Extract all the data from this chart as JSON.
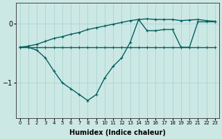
{
  "xlabel": "Humidex (Indice chaleur)",
  "bg_color": "#cce8e4",
  "grid_color": "#aad4d0",
  "line_color": "#005f5f",
  "xlim": [
    -0.5,
    23.5
  ],
  "ylim": [
    -1.6,
    0.35
  ],
  "yticks": [
    0,
    -1
  ],
  "xticks": [
    0,
    1,
    2,
    3,
    4,
    5,
    6,
    7,
    8,
    9,
    10,
    11,
    12,
    13,
    14,
    15,
    16,
    17,
    18,
    19,
    20,
    21,
    22,
    23
  ],
  "line1_x": [
    0,
    1,
    2,
    3,
    4,
    5,
    6,
    7,
    8,
    9,
    10,
    11,
    12,
    13,
    14,
    15,
    16,
    17,
    18,
    19,
    20,
    21,
    22,
    23
  ],
  "line1_y": [
    -0.4,
    -0.4,
    -0.4,
    -0.4,
    -0.4,
    -0.4,
    -0.4,
    -0.4,
    -0.4,
    -0.4,
    -0.4,
    -0.4,
    -0.4,
    -0.4,
    -0.4,
    -0.4,
    -0.4,
    -0.4,
    -0.4,
    -0.4,
    -0.4,
    -0.4,
    -0.4,
    -0.4
  ],
  "line2_x": [
    0,
    1,
    2,
    3,
    4,
    5,
    6,
    7,
    8,
    9,
    10,
    11,
    12,
    13,
    14,
    15,
    16,
    17,
    18,
    19,
    20,
    21,
    22,
    23
  ],
  "line2_y": [
    -0.4,
    -0.4,
    -0.45,
    -0.58,
    -0.8,
    -1.0,
    -1.1,
    -1.2,
    -1.3,
    -1.2,
    -0.92,
    -0.72,
    -0.58,
    -0.32,
    0.07,
    -0.12,
    -0.12,
    -0.1,
    -0.1,
    -0.4,
    -0.4,
    0.03,
    0.03,
    0.03
  ],
  "line3_x": [
    0,
    1,
    2,
    3,
    4,
    5,
    6,
    7,
    8,
    9,
    10,
    11,
    12,
    13,
    14,
    15,
    16,
    17,
    18,
    19,
    20,
    21,
    22,
    23
  ],
  "line3_y": [
    -0.4,
    -0.38,
    -0.35,
    -0.3,
    -0.25,
    -0.22,
    -0.18,
    -0.15,
    -0.1,
    -0.07,
    -0.04,
    -0.01,
    0.02,
    0.05,
    0.07,
    0.08,
    0.07,
    0.07,
    0.07,
    0.05,
    0.06,
    0.07,
    0.05,
    0.04
  ]
}
